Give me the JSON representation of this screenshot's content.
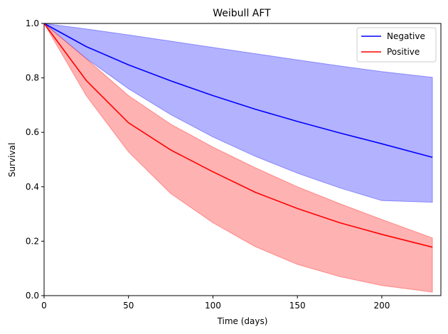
{
  "chart_data": {
    "type": "line",
    "title": "Weibull AFT",
    "xlabel": "Time (days)",
    "ylabel": "Survival",
    "xlim": [
      0,
      235
    ],
    "ylim": [
      0.0,
      1.0
    ],
    "xticks": [
      0,
      50,
      100,
      150,
      200
    ],
    "xtick_labels": [
      "0",
      "50",
      "100",
      "150",
      "200"
    ],
    "yticks": [
      0.0,
      0.2,
      0.4,
      0.6,
      0.8,
      1.0
    ],
    "ytick_labels": [
      "0.0",
      "0.2",
      "0.4",
      "0.6",
      "0.8",
      "1.0"
    ],
    "grid": false,
    "legend_position": "upper right",
    "series": [
      {
        "name": "Negative",
        "color": "#0000ff",
        "band_color": "#0000ff",
        "x": [
          0,
          25,
          50,
          75,
          100,
          125,
          150,
          175,
          200,
          230
        ],
        "y": [
          1.0,
          0.915,
          0.848,
          0.789,
          0.735,
          0.685,
          0.64,
          0.598,
          0.558,
          0.508
        ],
        "lower": [
          1.0,
          0.871,
          0.76,
          0.665,
          0.583,
          0.512,
          0.45,
          0.396,
          0.349,
          0.343
        ],
        "upper": [
          1.0,
          0.98,
          0.958,
          0.935,
          0.912,
          0.889,
          0.866,
          0.844,
          0.823,
          0.802
        ]
      },
      {
        "name": "Positive",
        "color": "#ff0000",
        "band_color": "#ff0000",
        "x": [
          0,
          25,
          50,
          75,
          100,
          125,
          150,
          175,
          200,
          230
        ],
        "y": [
          1.0,
          0.79,
          0.635,
          0.535,
          0.455,
          0.38,
          0.32,
          0.268,
          0.225,
          0.178
        ],
        "lower": [
          1.0,
          0.734,
          0.528,
          0.375,
          0.268,
          0.18,
          0.115,
          0.07,
          0.037,
          0.013
        ],
        "upper": [
          1.0,
          0.87,
          0.735,
          0.63,
          0.546,
          0.47,
          0.4,
          0.338,
          0.28,
          0.212
        ]
      }
    ]
  }
}
